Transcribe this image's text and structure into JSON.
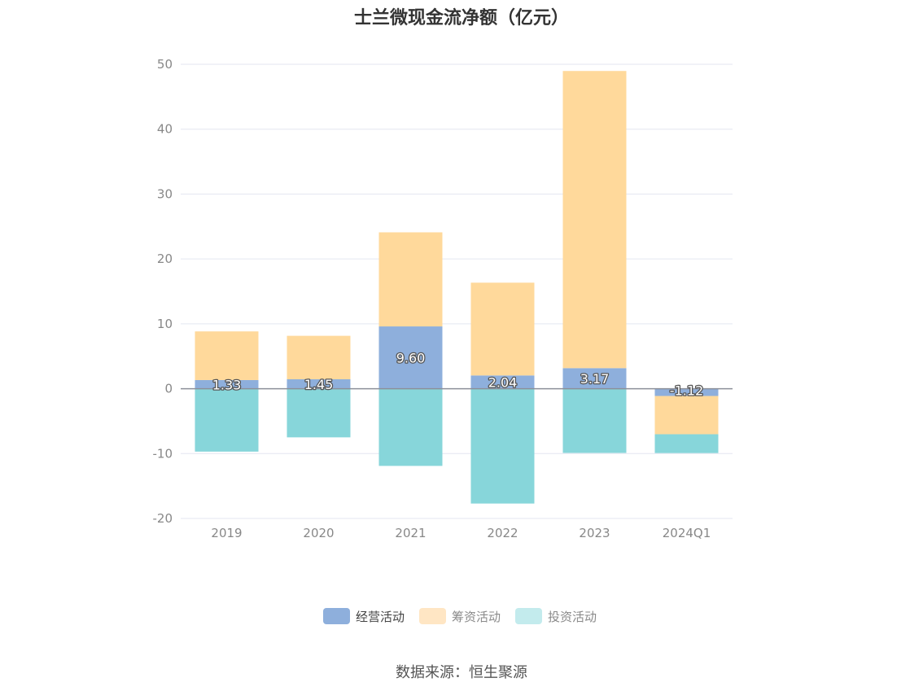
{
  "chart_data": {
    "type": "bar",
    "stacked": true,
    "title": "士兰微现金流净额（亿元）",
    "categories": [
      "2019",
      "2020",
      "2021",
      "2022",
      "2023",
      "2024Q1"
    ],
    "ylim": [
      -20,
      50
    ],
    "yticks": [
      -20,
      -10,
      0,
      10,
      20,
      30,
      40,
      50
    ],
    "grid": true,
    "legend_position": "bottom-center",
    "series": [
      {
        "name": "经营活动",
        "color": "#8EAFDC",
        "values": [
          1.33,
          1.45,
          9.6,
          2.04,
          3.17,
          -1.12
        ],
        "labels": [
          "1.33",
          "1.45",
          "9.60",
          "2.04",
          "3.17",
          "-1.12"
        ]
      },
      {
        "name": "筹资活动",
        "color": "#FFD99B",
        "values": [
          7.5,
          6.7,
          14.5,
          14.3,
          45.8,
          -5.9
        ]
      },
      {
        "name": "投资活动",
        "color": "#87D6DA",
        "values": [
          -9.7,
          -7.5,
          -11.9,
          -17.7,
          -9.9,
          -2.9
        ]
      }
    ],
    "legend_colors": [
      "#8EAFDC",
      "#FFE6C4",
      "#C3EBED"
    ]
  },
  "source": "数据来源：恒生聚源"
}
